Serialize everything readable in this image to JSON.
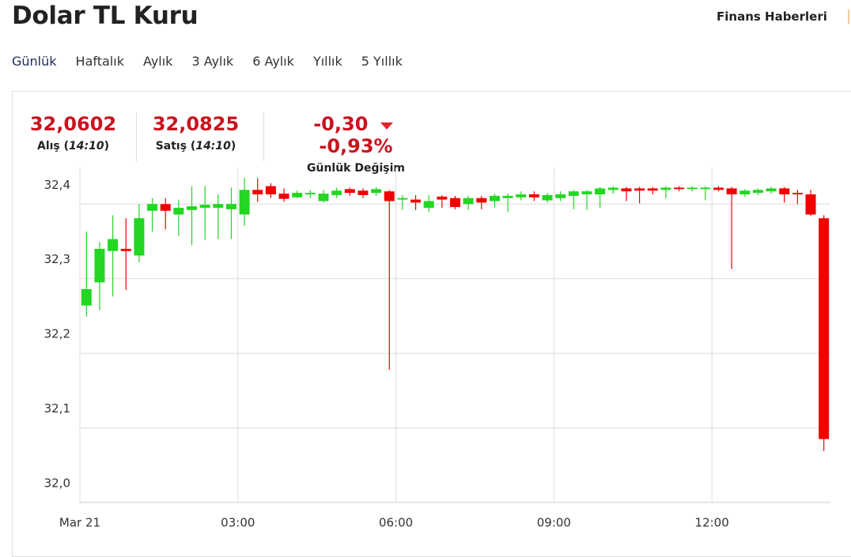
{
  "header": {
    "title": "Dolar TL Kuru",
    "link": "Finans Haberleri"
  },
  "tabs": {
    "items": [
      "Günlük",
      "Haftalık",
      "Aylık",
      "3 Aylık",
      "6 Aylık",
      "Yıllık",
      "5 Yıllık"
    ],
    "active": 0
  },
  "quote": {
    "buy": {
      "value": "32,0602",
      "label": "Alış",
      "time": "14:10"
    },
    "sell": {
      "value": "32,0825",
      "label": "Satış",
      "time": "14:10"
    },
    "change": {
      "value": "-0,30",
      "percent": "-0,93%",
      "label": "Günlük Değişim"
    }
  },
  "chart_data": {
    "type": "candlestick",
    "x": [
      0,
      15,
      30,
      45,
      60,
      75,
      90,
      105,
      120,
      135,
      150,
      165,
      180,
      195,
      210,
      225,
      240,
      255,
      270,
      285,
      300,
      315,
      330,
      345,
      360,
      375,
      390,
      405,
      420,
      435,
      450,
      465,
      480,
      495,
      510,
      525,
      540,
      555,
      570,
      585,
      600,
      615,
      630,
      645,
      660,
      675,
      690,
      705,
      720,
      735,
      750,
      765,
      780,
      795,
      810,
      825,
      840
    ],
    "open": [
      32.264,
      32.295,
      32.337,
      32.34,
      32.331,
      32.391,
      32.4,
      32.386,
      32.392,
      32.395,
      32.395,
      32.393,
      32.386,
      32.419,
      32.424,
      32.414,
      32.409,
      32.413,
      32.404,
      32.412,
      32.42,
      32.418,
      32.415,
      32.417,
      32.406,
      32.406,
      32.395,
      32.41,
      32.408,
      32.4,
      32.408,
      32.404,
      32.408,
      32.409,
      32.413,
      32.405,
      32.408,
      32.411,
      32.413,
      32.413,
      32.419,
      32.421,
      32.421,
      32.421,
      32.419,
      32.422,
      32.42,
      32.42,
      32.422,
      32.421,
      32.413,
      32.415,
      32.417,
      32.421,
      32.415,
      32.413,
      32.381
    ],
    "high": [
      32.363,
      32.349,
      32.385,
      32.381,
      32.4,
      32.408,
      32.408,
      32.406,
      32.424,
      32.424,
      32.413,
      32.422,
      32.435,
      32.435,
      32.428,
      32.421,
      32.418,
      32.419,
      32.419,
      32.422,
      32.422,
      32.421,
      32.423,
      32.419,
      32.412,
      32.412,
      32.412,
      32.412,
      32.411,
      32.411,
      32.411,
      32.414,
      32.414,
      32.417,
      32.417,
      32.415,
      32.417,
      32.419,
      32.419,
      32.423,
      32.424,
      32.423,
      32.423,
      32.423,
      32.424,
      32.424,
      32.424,
      32.424,
      32.424,
      32.423,
      32.42,
      32.421,
      32.423,
      32.423,
      32.419,
      32.419,
      32.385
    ],
    "low": [
      32.249,
      32.258,
      32.276,
      32.285,
      32.322,
      32.363,
      32.366,
      32.357,
      32.345,
      32.352,
      32.353,
      32.353,
      32.371,
      32.403,
      32.408,
      32.403,
      32.408,
      32.408,
      32.402,
      32.408,
      32.411,
      32.408,
      32.411,
      32.178,
      32.392,
      32.392,
      32.389,
      32.395,
      32.393,
      32.392,
      32.393,
      32.395,
      32.389,
      32.405,
      32.404,
      32.402,
      32.404,
      32.393,
      32.392,
      32.395,
      32.414,
      32.404,
      32.401,
      32.413,
      32.408,
      32.417,
      32.417,
      32.405,
      32.417,
      32.313,
      32.41,
      32.412,
      32.414,
      32.402,
      32.4,
      32.384,
      32.069
    ],
    "close": [
      32.286,
      32.34,
      32.353,
      32.337,
      32.381,
      32.4,
      32.391,
      32.395,
      32.397,
      32.399,
      32.4,
      32.4,
      32.419,
      32.413,
      32.413,
      32.407,
      32.415,
      32.415,
      32.414,
      32.418,
      32.415,
      32.412,
      32.42,
      32.404,
      32.408,
      32.402,
      32.404,
      32.406,
      32.396,
      32.408,
      32.402,
      32.411,
      32.411,
      32.413,
      32.409,
      32.412,
      32.413,
      32.417,
      32.417,
      32.421,
      32.422,
      32.417,
      32.418,
      32.418,
      32.422,
      32.42,
      32.422,
      32.422,
      32.419,
      32.413,
      32.418,
      32.419,
      32.421,
      32.413,
      32.413,
      32.386,
      32.085
    ],
    "xlim": [
      0,
      855
    ],
    "xticks": [
      {
        "value": 0,
        "label": "Mar 21"
      },
      {
        "value": 180,
        "label": "03:00"
      },
      {
        "value": 360,
        "label": "06:00"
      },
      {
        "value": 540,
        "label": "09:00"
      },
      {
        "value": 720,
        "label": "12:00"
      }
    ],
    "ylim": [
      32.0,
      32.449
    ],
    "yticks": [
      {
        "value": 32.0,
        "label": "32,0"
      },
      {
        "value": 32.1,
        "label": "32,1"
      },
      {
        "value": 32.2,
        "label": "32,2"
      },
      {
        "value": 32.3,
        "label": "32,3"
      },
      {
        "value": 32.4,
        "label": "32,4"
      }
    ],
    "grid": true,
    "up_color": "#22d622",
    "down_color": "#f20000"
  }
}
